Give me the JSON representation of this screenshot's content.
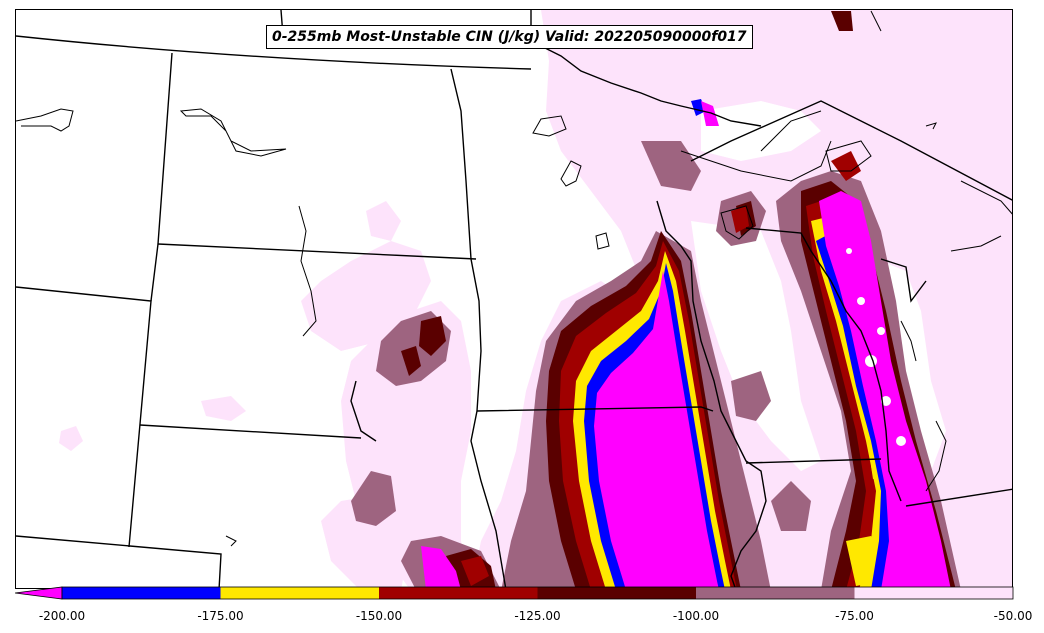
{
  "title": "0-255mb Most-Unstable CIN (J/kg) Valid: 202205090000f017",
  "colorbar": {
    "bins": [
      {
        "from": -200,
        "to": -175,
        "color": "#0000ff"
      },
      {
        "from": -175,
        "to": -150,
        "color": "#ffe800"
      },
      {
        "from": -150,
        "to": -125,
        "color": "#a00000"
      },
      {
        "from": -125,
        "to": -100,
        "color": "#5a0000"
      },
      {
        "from": -100,
        "to": -75,
        "color": "#9e6480"
      },
      {
        "from": -75,
        "to": -50,
        "color": "#fde3fb"
      }
    ],
    "under_color": "#ff00ff",
    "ticks": [
      "-200.00",
      "-175.00",
      "-150.00",
      "-125.00",
      "-100.00",
      "-75.00",
      "-50.00"
    ]
  },
  "colors": {
    "magenta": "#ff00ff",
    "blue": "#0000ff",
    "yellow": "#ffe800",
    "red": "#a00000",
    "dark_red": "#5a0000",
    "mauve": "#9e6480",
    "light_pink": "#fde3fb",
    "boundary": "#000000"
  }
}
